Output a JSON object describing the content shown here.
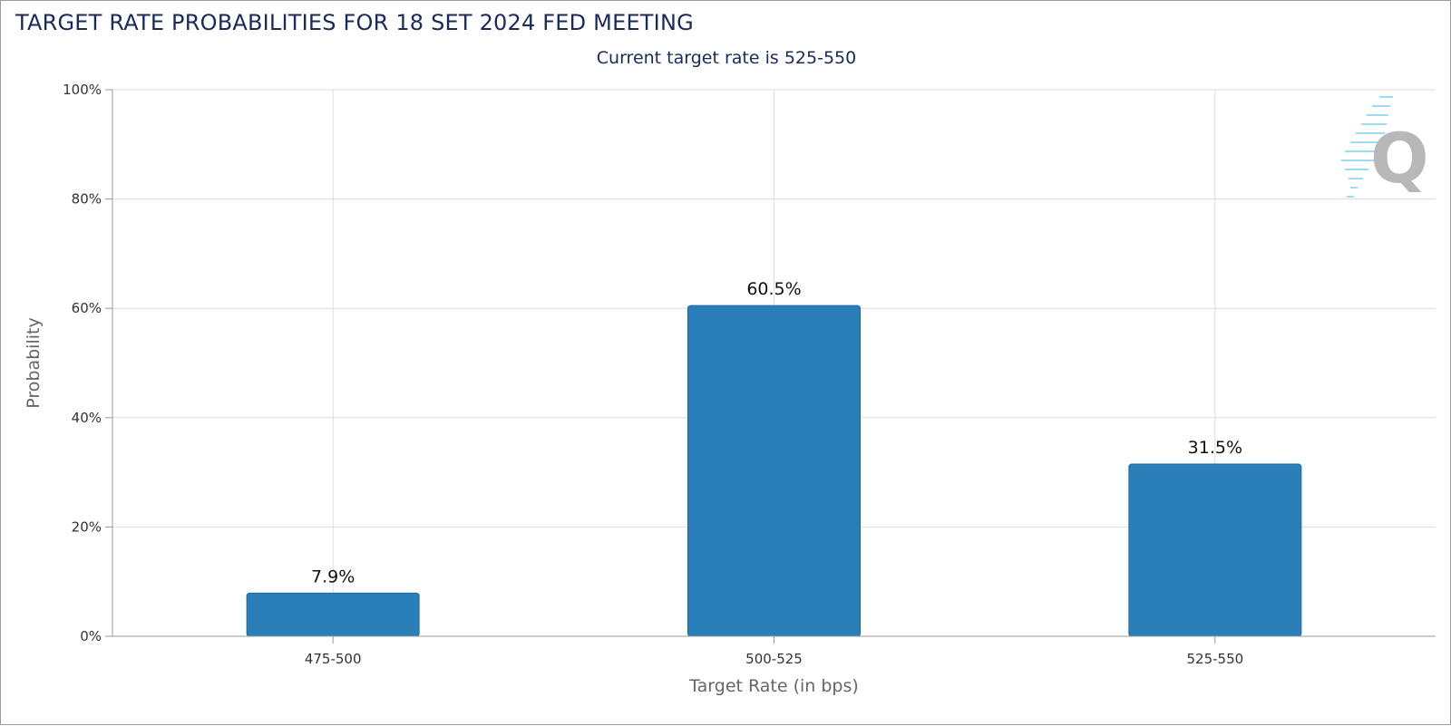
{
  "chart_data": {
    "type": "bar",
    "title": "TARGET RATE PROBABILITIES FOR 18 SET 2024 FED MEETING",
    "subtitle": "Current target rate is 525-550",
    "xlabel": "Target Rate (in bps)",
    "ylabel": "Probability",
    "categories": [
      "475-500",
      "500-525",
      "525-550"
    ],
    "values": [
      7.9,
      60.5,
      31.5
    ],
    "data_labels": [
      "7.9%",
      "60.5%",
      "31.5%"
    ],
    "ylim": [
      0,
      100
    ],
    "yticks": [
      0,
      20,
      40,
      60,
      80,
      100
    ],
    "ytick_labels": [
      "0%",
      "20%",
      "40%",
      "60%",
      "80%",
      "100%"
    ],
    "grid": true,
    "bar_color": "#2a7fb8",
    "grid_color": "#dddddd",
    "axis_color": "#999999"
  }
}
